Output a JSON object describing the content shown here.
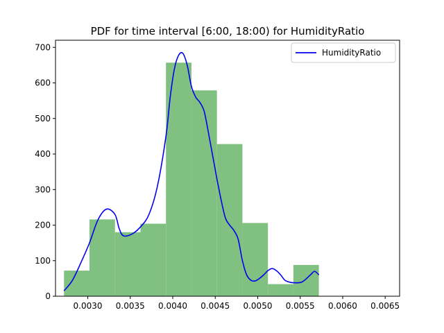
{
  "chart_data": {
    "type": "bar",
    "title": "PDF for time interval [6:00, 18:00) for HumidityRatio",
    "xlabel": "",
    "ylabel": "",
    "xlim": [
      0.00262,
      0.00667
    ],
    "ylim": [
      0,
      720
    ],
    "grid": false,
    "legend_position": "top-right",
    "histogram": {
      "color": "#80c080",
      "bins": [
        {
          "x0": 0.00272,
          "x1": 0.00302,
          "value": 72
        },
        {
          "x0": 0.00302,
          "x1": 0.00332,
          "value": 216
        },
        {
          "x0": 0.00332,
          "x1": 0.00362,
          "value": 180
        },
        {
          "x0": 0.00362,
          "x1": 0.00392,
          "value": 204
        },
        {
          "x0": 0.00392,
          "x1": 0.00422,
          "value": 657
        },
        {
          "x0": 0.00422,
          "x1": 0.00452,
          "value": 579
        },
        {
          "x0": 0.00452,
          "x1": 0.00482,
          "value": 428
        },
        {
          "x0": 0.00482,
          "x1": 0.00512,
          "value": 206
        },
        {
          "x0": 0.00512,
          "x1": 0.00542,
          "value": 34
        },
        {
          "x0": 0.00542,
          "x1": 0.00572,
          "value": 88
        }
      ]
    },
    "series": [
      {
        "name": "HumidityRatio",
        "color": "#0000ee",
        "x": [
          0.00272,
          0.00282,
          0.00292,
          0.00302,
          0.00312,
          0.00322,
          0.00332,
          0.00337,
          0.00342,
          0.00352,
          0.00362,
          0.00372,
          0.00382,
          0.00392,
          0.00397,
          0.00402,
          0.00407,
          0.00412,
          0.00417,
          0.00422,
          0.00427,
          0.00432,
          0.00437,
          0.00442,
          0.00447,
          0.00452,
          0.00457,
          0.00462,
          0.00467,
          0.00472,
          0.00477,
          0.00482,
          0.00487,
          0.00492,
          0.00497,
          0.00502,
          0.00507,
          0.00512,
          0.00517,
          0.00522,
          0.00527,
          0.00532,
          0.00537,
          0.00542,
          0.00552,
          0.00562,
          0.00567,
          0.00572
        ],
        "y": [
          15,
          45,
          95,
          150,
          215,
          245,
          230,
          190,
          170,
          175,
          195,
          230,
          310,
          450,
          560,
          640,
          678,
          683,
          650,
          590,
          560,
          545,
          520,
          460,
          395,
          330,
          270,
          220,
          200,
          185,
          160,
          100,
          60,
          45,
          43,
          50,
          60,
          72,
          78,
          72,
          60,
          45,
          40,
          38,
          40,
          60,
          70,
          60
        ]
      }
    ],
    "x_ticks": [
      {
        "value": 0.003,
        "label": "0.0030"
      },
      {
        "value": 0.0035,
        "label": "0.0035"
      },
      {
        "value": 0.004,
        "label": "0.0040"
      },
      {
        "value": 0.0045,
        "label": "0.0045"
      },
      {
        "value": 0.005,
        "label": "0.0050"
      },
      {
        "value": 0.0055,
        "label": "0.0055"
      },
      {
        "value": 0.006,
        "label": "0.0060"
      },
      {
        "value": 0.0065,
        "label": "0.0065"
      }
    ],
    "y_ticks": [
      {
        "value": 0,
        "label": "0"
      },
      {
        "value": 100,
        "label": "100"
      },
      {
        "value": 200,
        "label": "200"
      },
      {
        "value": 300,
        "label": "300"
      },
      {
        "value": 400,
        "label": "400"
      },
      {
        "value": 500,
        "label": "500"
      },
      {
        "value": 600,
        "label": "600"
      },
      {
        "value": 700,
        "label": "700"
      }
    ]
  }
}
